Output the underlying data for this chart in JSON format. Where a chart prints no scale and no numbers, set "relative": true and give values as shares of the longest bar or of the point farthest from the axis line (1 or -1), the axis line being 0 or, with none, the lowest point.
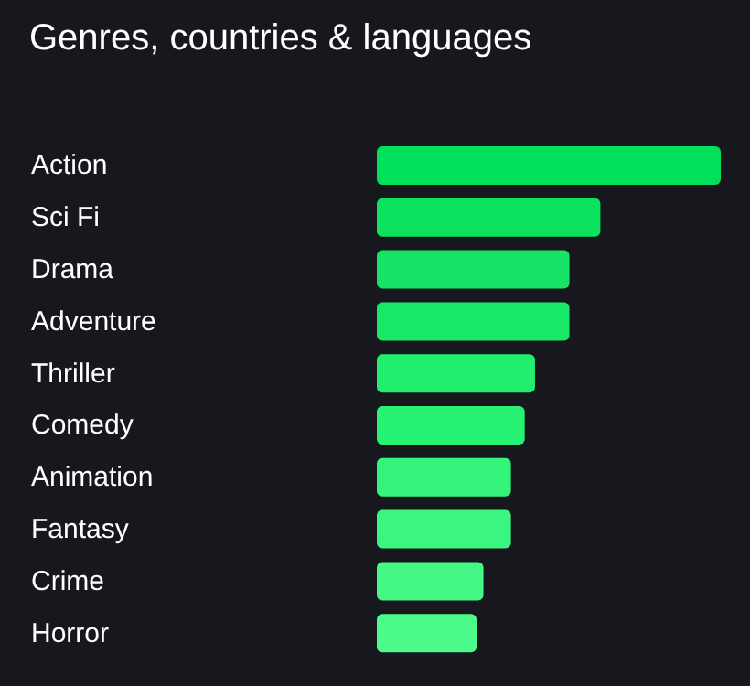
{
  "chart_data": {
    "type": "bar",
    "orientation": "horizontal",
    "relative": true,
    "title": "Genres, countries & languages",
    "categories": [
      "Action",
      "Sci Fi",
      "Drama",
      "Adventure",
      "Thriller",
      "Comedy",
      "Animation",
      "Fantasy",
      "Crime",
      "Horror"
    ],
    "values": [
      1,
      0.65,
      0.56,
      0.56,
      0.46,
      0.43,
      0.39,
      0.39,
      0.31,
      0.29
    ],
    "colors": [
      "#00e05a",
      "#0ce260",
      "#15e466",
      "#18e868",
      "#22ee6e",
      "#28f274",
      "#35f47c",
      "#3af680",
      "#45f885",
      "#4cfb8a"
    ]
  }
}
